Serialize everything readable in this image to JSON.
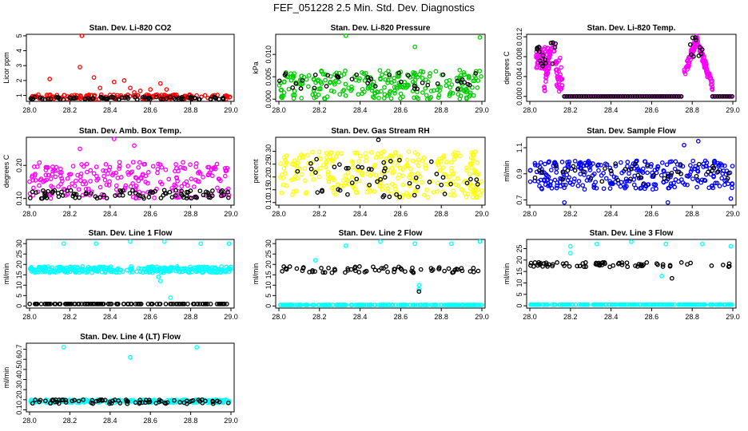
{
  "figure_title": "FEF_051228  2.5 Min. Std. Dev. Diagnostics",
  "chart_data": [
    {
      "type": "scatter",
      "title": "Stan. Dev. Li-820 CO2",
      "ylabel": "Licor ppm",
      "xlim": [
        28.0,
        29.0
      ],
      "ylim": [
        0.6,
        5.1
      ],
      "xticks": [
        "28.0",
        "28.2",
        "28.4",
        "28.6",
        "28.8",
        "29.0"
      ],
      "yticks": [
        1,
        2,
        3,
        4,
        5
      ],
      "ytick_labels": [
        "1",
        "2",
        "3",
        "4",
        "5"
      ],
      "series": [
        {
          "color": "#ff0000",
          "band": [
            0.75,
            1.05
          ],
          "n": 170,
          "outliers": [
            [
              28.1,
              2.1
            ],
            [
              28.25,
              2.9
            ],
            [
              28.26,
              5.0
            ],
            [
              28.32,
              2.2
            ],
            [
              28.35,
              1.5
            ],
            [
              28.42,
              1.9
            ],
            [
              28.47,
              2.0
            ],
            [
              28.5,
              1.5
            ],
            [
              28.52,
              1.2
            ],
            [
              28.55,
              1.3
            ],
            [
              28.6,
              1.4
            ],
            [
              28.65,
              1.8
            ],
            [
              28.68,
              1.4
            ]
          ]
        },
        {
          "color": "#000000",
          "band": [
            0.72,
            0.9
          ],
          "n": 80,
          "outliers": []
        }
      ]
    },
    {
      "type": "scatter",
      "title": "Stan. Dev. Li-820 Pressure",
      "ylabel": "kPa",
      "xlim": [
        28.0,
        29.0
      ],
      "ylim": [
        -0.0005,
        0.0145
      ],
      "xticks": [
        "28.0",
        "28.2",
        "28.4",
        "28.6",
        "28.8",
        "29.0"
      ],
      "yticks": [
        0.0,
        0.005,
        0.01
      ],
      "ytick_labels": [
        "0.000",
        "0.005",
        "0.010"
      ],
      "series": [
        {
          "color": "#00cc00",
          "band": [
            0.0,
            0.0065
          ],
          "n": 260,
          "outliers": [
            [
              28.33,
              0.0142
            ],
            [
              28.67,
              0.0117
            ],
            [
              28.99,
              0.0138
            ]
          ]
        },
        {
          "color": "#000000",
          "band": [
            0.002,
            0.006
          ],
          "n": 40,
          "outliers": []
        }
      ]
    },
    {
      "type": "scatter",
      "title": "Stan. Dev. Li-820 Temp.",
      "ylabel": "degrees C",
      "xlim": [
        28.0,
        29.0
      ],
      "ylim": [
        -0.001,
        0.0125
      ],
      "xticks": [
        "28.0",
        "28.2",
        "28.4",
        "28.6",
        "28.8",
        "29.0"
      ],
      "yticks": [
        0.0,
        0.004,
        0.008,
        0.012
      ],
      "ytick_labels": [
        "0.000",
        "0.004",
        "0.008",
        "0.012"
      ],
      "series": [
        {
          "color": "#ff00ff",
          "band": [
            0.0,
            0.0
          ],
          "n": 0,
          "outliers": []
        },
        {
          "color": "#000000",
          "band": [
            0.0,
            0.0
          ],
          "n": 0,
          "outliers": []
        }
      ]
    },
    {
      "type": "scatter",
      "title": "Stan. Dev. Amb. Box Temp.",
      "ylabel": "degrees C",
      "xlim": [
        28.0,
        29.0
      ],
      "ylim": [
        0.08,
        0.285
      ],
      "xticks": [
        "28.0",
        "28.2",
        "28.4",
        "28.6",
        "28.8",
        "29.0"
      ],
      "yticks": [
        0.1,
        0.2
      ],
      "ytick_labels": [
        "0.10",
        "0.20"
      ],
      "series": [
        {
          "color": "#ff00ff",
          "band": [
            0.1,
            0.21
          ],
          "n": 230,
          "outliers": [
            [
              28.42,
              0.28
            ],
            [
              28.52,
              0.26
            ],
            [
              28.25,
              0.25
            ]
          ]
        },
        {
          "color": "#000000",
          "band": [
            0.1,
            0.125
          ],
          "n": 90,
          "outliers": []
        }
      ]
    },
    {
      "type": "scatter",
      "title": "Stan. Dev. Gas Stream RH",
      "ylabel": "percent",
      "xlim": [
        28.0,
        29.0
      ],
      "ylim": [
        0.09,
        0.355
      ],
      "xticks": [
        "28.0",
        "28.2",
        "28.4",
        "28.6",
        "28.8",
        "29.0"
      ],
      "yticks": [
        0.1,
        0.15,
        0.2,
        0.25,
        0.3
      ],
      "ytick_labels": [
        "0.10",
        "0.15",
        "0.20",
        "0.25",
        "0.30"
      ],
      "series": [
        {
          "color": "#ffff00",
          "band": [
            0.12,
            0.3
          ],
          "n": 300,
          "outliers": []
        },
        {
          "color": "#000000",
          "band": [
            0.12,
            0.27
          ],
          "n": 50,
          "outliers": [
            [
              28.49,
              0.345
            ]
          ]
        }
      ]
    },
    {
      "type": "scatter",
      "title": "Stan. Dev. Sample Flow",
      "ylabel": "ml/min",
      "xlim": [
        28.0,
        29.0
      ],
      "ylim": [
        0.66,
        1.18
      ],
      "xticks": [
        "28.0",
        "28.2",
        "28.4",
        "28.6",
        "28.8",
        "29.0"
      ],
      "yticks": [
        0.7,
        0.9,
        1.1
      ],
      "ytick_labels": [
        "0.7",
        "0.9",
        "1.1"
      ],
      "series": [
        {
          "color": "#0000ff",
          "band": [
            0.78,
            1.0
          ],
          "n": 300,
          "outliers": [
            [
              28.17,
              0.68
            ],
            [
              28.68,
              0.68
            ],
            [
              28.83,
              1.15
            ],
            [
              28.76,
              1.12
            ],
            [
              28.99,
              0.71
            ]
          ]
        },
        {
          "color": "#000000",
          "band": [
            0.82,
            0.98
          ],
          "n": 40,
          "outliers": []
        }
      ]
    },
    {
      "type": "scatter",
      "title": "Stan. Dev. Line 1 Flow",
      "ylabel": "ml/min",
      "xlim": [
        28.0,
        29.0
      ],
      "ylim": [
        -1,
        32
      ],
      "xticks": [
        "28.0",
        "28.2",
        "28.4",
        "28.6",
        "28.8",
        "29.0"
      ],
      "yticks": [
        0,
        5,
        10,
        15,
        20,
        25,
        30
      ],
      "ytick_labels": [
        "0",
        "5",
        "10",
        "15",
        "20",
        "25",
        "30"
      ],
      "series": [
        {
          "color": "#00ffff",
          "band": [
            16,
            19
          ],
          "n": 300,
          "outliers": [
            [
              28.17,
              30
            ],
            [
              28.33,
              30
            ],
            [
              28.5,
              31
            ],
            [
              28.67,
              31
            ],
            [
              28.85,
              30
            ],
            [
              28.99,
              30
            ],
            [
              28.7,
              4
            ],
            [
              28.65,
              12
            ],
            [
              28.64,
              14
            ]
          ]
        },
        {
          "color": "#000000",
          "band": [
            1,
            1
          ],
          "n": 120,
          "outliers": []
        }
      ]
    },
    {
      "type": "scatter",
      "title": "Stan. Dev. Line 2 Flow",
      "ylabel": "ml/min",
      "xlim": [
        28.0,
        29.0
      ],
      "ylim": [
        -1,
        32
      ],
      "xticks": [
        "28.0",
        "28.2",
        "28.4",
        "28.6",
        "28.8",
        "29.0"
      ],
      "yticks": [
        0,
        5,
        10,
        15,
        20,
        25,
        30
      ],
      "ytick_labels": [
        "0",
        "5",
        "10",
        "15",
        "20",
        "25",
        "30"
      ],
      "series": [
        {
          "color": "#00ffff",
          "band": [
            0.5,
            0.5
          ],
          "n": 200,
          "outliers": [
            [
              28.33,
              29
            ],
            [
              28.5,
              31
            ],
            [
              28.67,
              30
            ],
            [
              28.85,
              30
            ],
            [
              28.99,
              31
            ],
            [
              28.18,
              22
            ],
            [
              28.69,
              10
            ],
            [
              28.69,
              8
            ]
          ]
        },
        {
          "color": "#000000",
          "band": [
            16,
            19
          ],
          "n": 70,
          "outliers": [
            [
              28.69,
              7
            ]
          ]
        }
      ]
    },
    {
      "type": "scatter",
      "title": "Stan. Dev. Line 3 Flow",
      "ylabel": "ml/min",
      "xlim": [
        28.0,
        29.0
      ],
      "ylim": [
        -1,
        29
      ],
      "xticks": [
        "28.0",
        "28.2",
        "28.4",
        "28.6",
        "28.8",
        "29.0"
      ],
      "yticks": [
        0,
        5,
        10,
        15,
        20,
        25
      ],
      "ytick_labels": [
        "0",
        "5",
        "10",
        "15",
        "20",
        "25"
      ],
      "series": [
        {
          "color": "#00ffff",
          "band": [
            0.5,
            0.5
          ],
          "n": 200,
          "outliers": [
            [
              28.2,
              26
            ],
            [
              28.33,
              27
            ],
            [
              28.5,
              28
            ],
            [
              28.67,
              27
            ],
            [
              28.85,
              27
            ],
            [
              28.99,
              26
            ],
            [
              28.2,
              23
            ],
            [
              28.65,
              13
            ]
          ]
        },
        {
          "color": "#000000",
          "band": [
            17,
            19
          ],
          "n": 70,
          "outliers": [
            [
              28.7,
              12
            ]
          ]
        }
      ]
    },
    {
      "type": "scatter",
      "title": "Stan. Dev. Line 4 (LT) Flow",
      "ylabel": "ml/min",
      "xlim": [
        28.0,
        29.0
      ],
      "ylim": [
        0.08,
        0.76
      ],
      "xticks": [
        "28.0",
        "28.2",
        "28.4",
        "28.6",
        "28.8",
        "29.0"
      ],
      "yticks": [
        0.1,
        0.2,
        0.3,
        0.4,
        0.5,
        0.6,
        0.7
      ],
      "ytick_labels": [
        "0.1",
        "0.2",
        "0.3",
        "0.4",
        "0.5",
        "0.6",
        "0.7"
      ],
      "series": [
        {
          "color": "#00ffff",
          "band": [
            0.17,
            0.2
          ],
          "n": 250,
          "outliers": [
            [
              28.17,
              0.72
            ],
            [
              28.5,
              0.62
            ],
            [
              28.83,
              0.72
            ]
          ]
        },
        {
          "color": "#000000",
          "band": [
            0.16,
            0.2
          ],
          "n": 80,
          "outliers": []
        }
      ]
    }
  ]
}
